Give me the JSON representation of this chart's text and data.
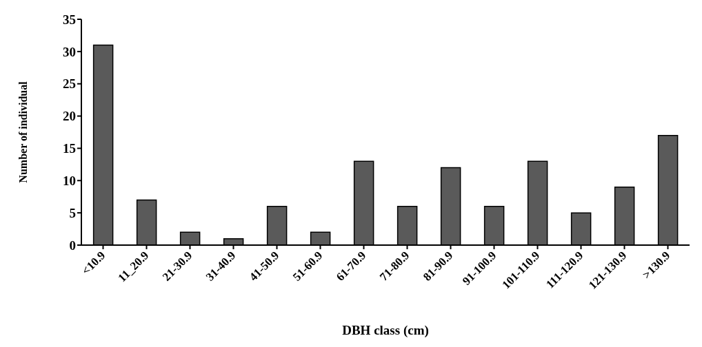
{
  "chart_data": {
    "type": "bar",
    "xlabel": "DBH class (cm)",
    "ylabel": "Number of individual",
    "categories": [
      "<10.9",
      "11_20.9",
      "21-30.9",
      "31-40.9",
      "41-50.9",
      "51-60.9",
      "61-70.9",
      "71-80.9",
      "81-90.9",
      "91-100.9",
      "101-110.9",
      "111-120.9",
      "121-130.9",
      ">130.9"
    ],
    "values": [
      31,
      7,
      2,
      1,
      6,
      2,
      13,
      6,
      12,
      6,
      13,
      5,
      9,
      17
    ],
    "color": "#5a5a5a",
    "ylim": [
      0,
      35
    ],
    "yticks": [
      0,
      5,
      10,
      15,
      20,
      25,
      30,
      35
    ],
    "grid": false
  }
}
